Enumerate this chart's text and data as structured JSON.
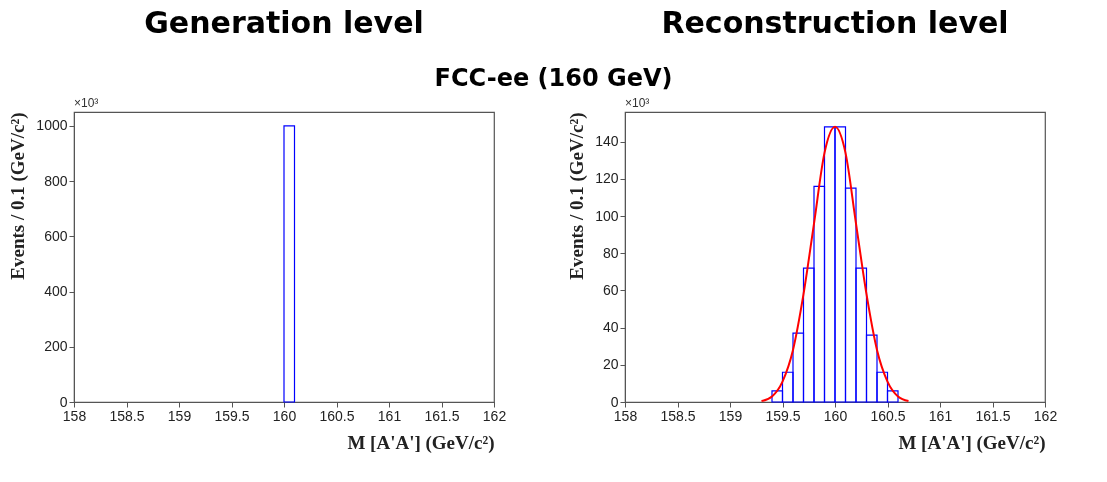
{
  "chart_data": [
    {
      "type": "histogram",
      "title": "Generation level",
      "subtitle": "FCC-ee (160 GeV)",
      "xlabel": "M [A'A'] (GeV/c²)",
      "ylabel": "Events / 0.1 (GeV/c²)",
      "annotations": [
        "×10³"
      ],
      "bins": [
        160,
        160.1
      ],
      "values": [
        1000
      ],
      "color": "#0000ff",
      "xlim": [
        158,
        162
      ],
      "xticks": [
        158,
        158.5,
        159,
        159.5,
        160,
        160.5,
        161,
        161.5,
        162
      ],
      "ylim": [
        0,
        1050
      ],
      "yticks": [
        0,
        200,
        400,
        600,
        800,
        1000
      ],
      "grid": false
    },
    {
      "type": "histogram",
      "title": "Reconstruction level",
      "xlabel": "M [A'A'] (GeV/c²)",
      "ylabel": "Events / 0.1 (GeV/c²)",
      "annotations": [
        "×10³"
      ],
      "bins": [
        159.4,
        159.5,
        159.6,
        159.7,
        159.8,
        159.9,
        160.0,
        160.1,
        160.2,
        160.3,
        160.4,
        160.5,
        160.6
      ],
      "series": [
        {
          "type": "histogram",
          "color": "#0000ff",
          "values": [
            6,
            16,
            37,
            72,
            116,
            148,
            148,
            115,
            72,
            36,
            16,
            6
          ]
        },
        {
          "type": "line",
          "color": "#ff0000",
          "x": [
            159.3,
            159.4,
            159.5,
            159.6,
            159.7,
            159.8,
            159.9,
            160.0,
            160.1,
            160.2,
            160.3,
            160.4,
            160.5,
            160.6,
            160.7
          ],
          "values": [
            0.5,
            3,
            11,
            28,
            58,
            96,
            134,
            148,
            134,
            96,
            58,
            28,
            11,
            3,
            0.5
          ]
        }
      ],
      "xlim": [
        158,
        162
      ],
      "xticks": [
        158,
        158.5,
        159,
        159.5,
        160,
        160.5,
        161,
        161.5,
        162
      ],
      "ylim": [
        0,
        156
      ],
      "yticks": [
        0,
        20,
        40,
        60,
        80,
        100,
        120,
        140
      ],
      "grid": false
    }
  ]
}
